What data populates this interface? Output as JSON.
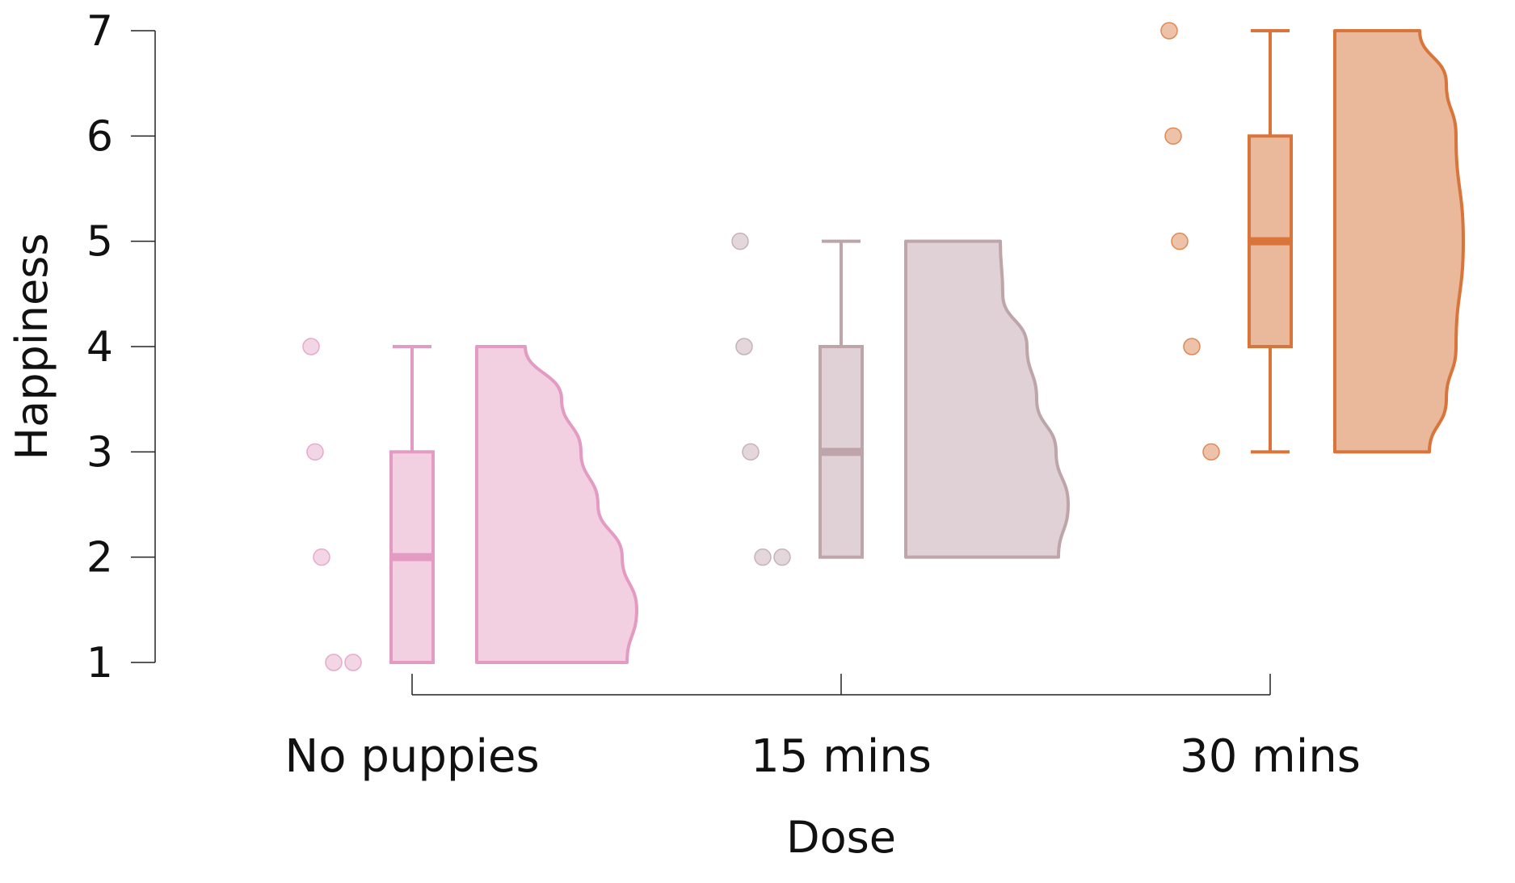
{
  "chart_data": {
    "type": "raincloud",
    "xlabel": "Dose",
    "ylabel": "Happiness",
    "ylim": [
      1,
      7
    ],
    "yticks": [
      "1",
      "2",
      "3",
      "4",
      "5",
      "6",
      "7"
    ],
    "categories": [
      "No puppies",
      "15 mins",
      "30 mins"
    ],
    "series": [
      {
        "category": "No puppies",
        "color": "#e39bc3",
        "fill": "#f2d0e2",
        "points": [
          4,
          3,
          2,
          1,
          1
        ],
        "box": {
          "min": 1,
          "q1": 1,
          "median": 2,
          "q3": 3,
          "max": 4
        },
        "density": [
          [
            1,
            0.62
          ],
          [
            1.5,
            0.66
          ],
          [
            2,
            0.6
          ],
          [
            2.5,
            0.5
          ],
          [
            3,
            0.43
          ],
          [
            3.5,
            0.35
          ],
          [
            4,
            0.2
          ]
        ]
      },
      {
        "category": "15 mins",
        "color": "#bda5aa",
        "fill": "#dfd1d5",
        "points": [
          5,
          4,
          3,
          2,
          2
        ],
        "box": {
          "min": 2,
          "q1": 2,
          "median": 3,
          "q3": 4,
          "max": 5
        },
        "density": [
          [
            2,
            0.63
          ],
          [
            2.5,
            0.67
          ],
          [
            3,
            0.62
          ],
          [
            3.5,
            0.54
          ],
          [
            4,
            0.5
          ],
          [
            4.5,
            0.4
          ],
          [
            5,
            0.39
          ]
        ]
      },
      {
        "category": "30 mins",
        "color": "#d9743a",
        "fill": "#eab89a",
        "points": [
          7,
          6,
          5,
          4,
          3
        ],
        "box": {
          "min": 3,
          "q1": 4,
          "median": 5,
          "q3": 6,
          "max": 7
        },
        "density": [
          [
            3,
            0.39
          ],
          [
            3.5,
            0.46
          ],
          [
            4,
            0.5
          ],
          [
            5,
            0.53
          ],
          [
            6,
            0.5
          ],
          [
            6.5,
            0.46
          ],
          [
            7,
            0.35
          ]
        ]
      }
    ]
  }
}
